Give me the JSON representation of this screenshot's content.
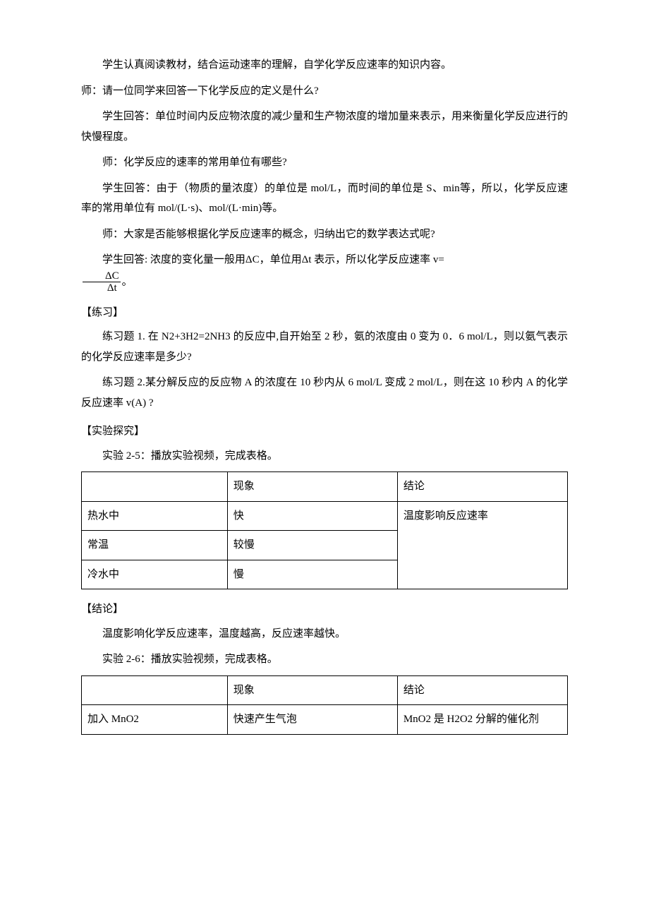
{
  "paras": {
    "p1": "学生认真阅读教材，结合运动速率的理解，自学化学反应速率的知识内容。",
    "p2": "师：请一位同学来回答一下化学反应的定义是什么?",
    "p3": "学生回答：单位时间内反应物浓度的减少量和生产物浓度的增加量来表示，用来衡量化学反应进行的快慢程度。",
    "p4": "师：化学反应的速率的常用单位有哪些?",
    "p5": "学生回答：由于（物质的量浓度）的单位是 mol/L，而时间的单位是 S、min等，所以，化学反应速率的常用单位有 mol/(L·s)、mol/(L·min)等。",
    "p6": "师：大家是否能够根据化学反应速率的概念，归纳出它的数学表达式呢?",
    "p7a": "学生回答: 浓度的变化量一般用ΔC，单位用Δt 表示，所以化学反应速率 v=",
    "frac_num": "ΔC",
    "frac_den": "Δt",
    "p7b": "。",
    "sec_practice": "【练习】",
    "ex1": "练习题 1. 在 N2+3H2=2NH3 的反应中,自开始至 2 秒，氨的浓度由 0 变为 0．6 mol/L，则以氨气表示的化学反应速率是多少?",
    "ex2": "练习题 2.某分解反应的反应物 A 的浓度在 10 秒内从 6 mol/L 变成 2 mol/L，则在这 10 秒内 A 的化学反应速率 v(A) ?",
    "sec_exp": "【实验探究】",
    "exp25": "实验 2-5：播放实验视频，完成表格。",
    "sec_conclusion": "【结论】",
    "conclusion_text": "温度影响化学反应速率，温度越高，反应速率越快。",
    "exp26": "实验 2-6：播放实验视频，完成表格。"
  },
  "table1": {
    "header": {
      "c0": "",
      "c1": "现象",
      "c2": "结论"
    },
    "rows": [
      {
        "c0": "热水中",
        "c1": "快"
      },
      {
        "c0": "常温",
        "c1": "较慢"
      },
      {
        "c0": "冷水中",
        "c1": "慢"
      }
    ],
    "conclusion": "温度影响反应速率"
  },
  "table2": {
    "header": {
      "c0": "",
      "c1": "现象",
      "c2": "结论"
    },
    "rows": [
      {
        "c0": "加入 MnO2",
        "c1": "快速产生气泡",
        "c2": "MnO2 是 H2O2 分解的催化剂"
      }
    ]
  }
}
